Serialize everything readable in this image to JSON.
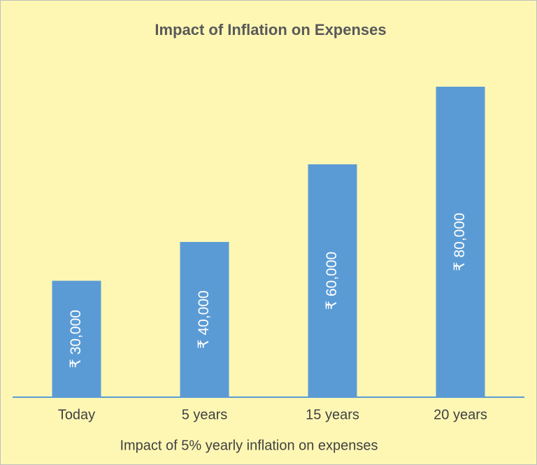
{
  "chart_data": {
    "type": "bar",
    "title": "Impact of Inflation on Expenses",
    "x_label": "Impact of 5% yearly inflation on expenses",
    "categories": [
      "Today",
      "5 years",
      "15 years",
      "20 years"
    ],
    "values": [
      30000,
      40000,
      60000,
      80000
    ],
    "value_labels": [
      "₹ 30,000",
      "₹ 40,000",
      "₹ 60,000",
      "₹ 80,000"
    ],
    "color": "#5b9bd5"
  }
}
